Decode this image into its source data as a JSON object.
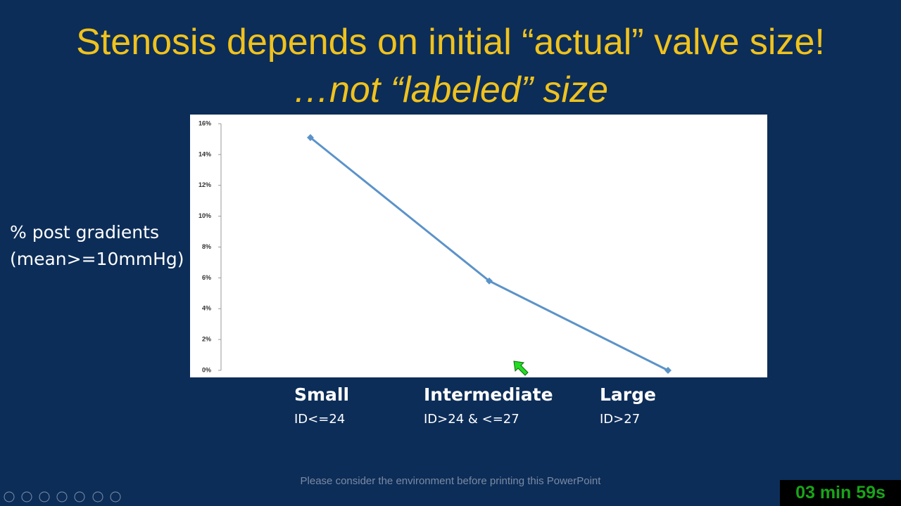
{
  "slide": {
    "title_lines": [
      "Stenosis depends on initial “actual” valve size!",
      "…not “labeled” size"
    ],
    "y_axis_label_lines": [
      "% post  gradients",
      "(mean>=10mmHg)"
    ],
    "footer": "Please consider the environment before printing this PowerPoint",
    "timer": "03 min 59s"
  },
  "chart_data": {
    "type": "line",
    "categories": [
      "Small",
      "Intermediate",
      "Large"
    ],
    "category_details": [
      "ID<=24",
      "ID>24 & <=27",
      "ID>27"
    ],
    "values": [
      15.1,
      5.8,
      0
    ],
    "color": "#5b93c9",
    "ylim": [
      0,
      16
    ],
    "yticks": [
      {
        "value": 0,
        "label": "0%"
      },
      {
        "value": 2,
        "label": "2%"
      },
      {
        "value": 4,
        "label": "4%"
      },
      {
        "value": 6,
        "label": "6%"
      },
      {
        "value": 8,
        "label": "8%"
      },
      {
        "value": 10,
        "label": "10%"
      },
      {
        "value": 12,
        "label": "12%"
      },
      {
        "value": 14,
        "label": "14%"
      },
      {
        "value": 16,
        "label": "16%"
      }
    ],
    "grid": false
  }
}
